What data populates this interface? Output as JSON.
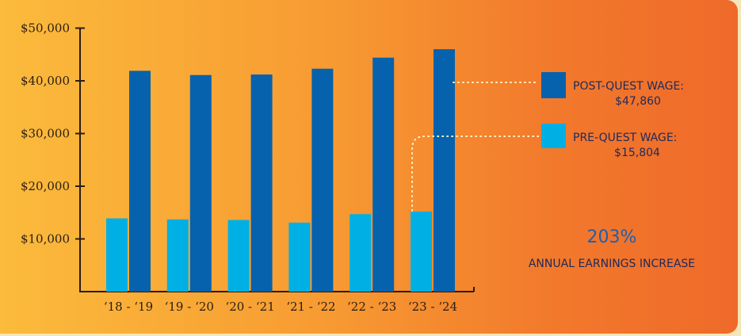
{
  "chart_data": {
    "type": "bar",
    "categories": [
      "‘18 - ‘19",
      "‘19 - ‘20",
      "‘20 - ‘21",
      "‘21 - ‘22",
      "‘22 - ‘23",
      "‘23 - ‘24"
    ],
    "series": [
      {
        "name": "PRE-QUEST WAGE",
        "color": "#00b0e4",
        "values": [
          13900,
          13700,
          13600,
          13100,
          14700,
          15200
        ]
      },
      {
        "name": "POST-QUEST WAGE",
        "color": "#0762ad",
        "values": [
          41900,
          41100,
          41200,
          42300,
          44400,
          46000
        ]
      }
    ],
    "yticks": [
      "$10,000",
      "$20,000",
      "$30,000",
      "$40,000",
      "$50,000"
    ],
    "ytick_values": [
      10000,
      20000,
      30000,
      40000,
      50000
    ],
    "ylim": [
      0,
      52000
    ],
    "grid": false,
    "legend_position": "right"
  },
  "legend": {
    "post_label": "POST-QUEST WAGE:",
    "post_value": "$47,860",
    "pre_label": "PRE-QUEST WAGE:",
    "pre_value": "$15,804"
  },
  "callout": {
    "percent": "203%",
    "label": "ANNUAL EARNINGS INCREASE"
  },
  "colors": {
    "post": "#0762ad",
    "pre": "#00b0e4",
    "axis": "#2b1d12"
  }
}
